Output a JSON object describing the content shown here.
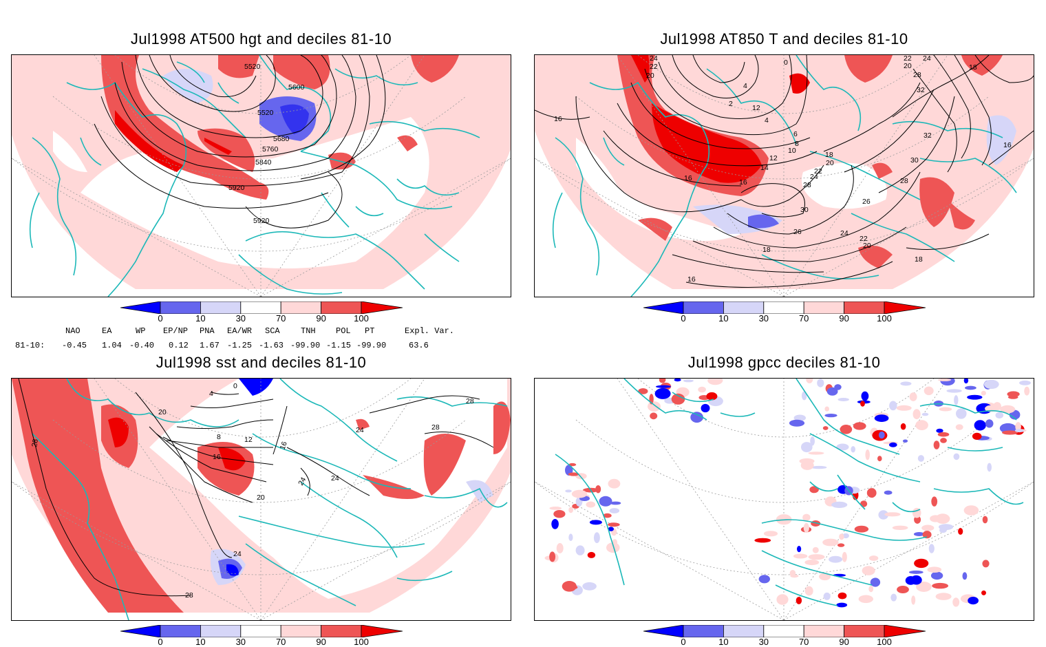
{
  "panels": {
    "p1": {
      "title": "Jul1998 AT500 hgt and deciles 81-10",
      "contour_labels": [
        "5520",
        "5600",
        "5520",
        "5680",
        "5760",
        "5840",
        "5920",
        "5920"
      ]
    },
    "p2": {
      "title": "Jul1998 AT850 T and deciles 81-10",
      "contour_labels": [
        "24",
        "22",
        "20",
        "0",
        "2",
        "4",
        "12",
        "4",
        "6",
        "8",
        "10",
        "12",
        "14",
        "16",
        "16",
        "18",
        "20",
        "22",
        "24",
        "28",
        "30",
        "26",
        "24",
        "22",
        "20",
        "18",
        "28",
        "26",
        "30",
        "32",
        "32",
        "28",
        "24",
        "22",
        "20",
        "18",
        "16",
        "16",
        "16",
        "18"
      ]
    },
    "p3": {
      "title": "Jul1998 sst and deciles 81-10",
      "contour_labels": [
        "28",
        "20",
        "0",
        "4",
        "8",
        "12",
        "16",
        "16",
        "20",
        "24",
        "24",
        "24",
        "28",
        "28",
        "28",
        "24"
      ]
    },
    "p4": {
      "title": "Jul1998 gpcc deciles 81-10",
      "contour_labels": []
    }
  },
  "colorbar": {
    "labels": [
      "0",
      "10",
      "30",
      "70",
      "90",
      "100"
    ],
    "colors": [
      "#0000ff",
      "#6666ee",
      "#d6d6f8",
      "#ffffff",
      "#ffd8d8",
      "#ee5555",
      "#ee0000"
    ]
  },
  "teleconnection": {
    "headers": [
      "NAO",
      "EA",
      "WP",
      "EP/NP",
      "PNA",
      "EA/WR",
      "SCA",
      "TNH",
      "POL",
      "PT",
      "Expl. Var."
    ],
    "row_label": "81-10:",
    "values": [
      "-0.45",
      "1.04",
      "-0.40",
      "0.12",
      "1.67",
      "-1.25",
      "-1.63",
      "-99.90",
      "-1.15",
      "-99.90",
      "63.6"
    ]
  },
  "colors": {
    "land_outline": "#1cb8b8",
    "grid": "#9a9a9a",
    "contour": "#000000",
    "low_tercile": "#d6d6f8",
    "low_decile": "#6666ee",
    "low_extreme": "#0000ff",
    "high_tercile": "#ffd8d8",
    "high_decile": "#ee5555",
    "high_extreme": "#ee0000"
  }
}
